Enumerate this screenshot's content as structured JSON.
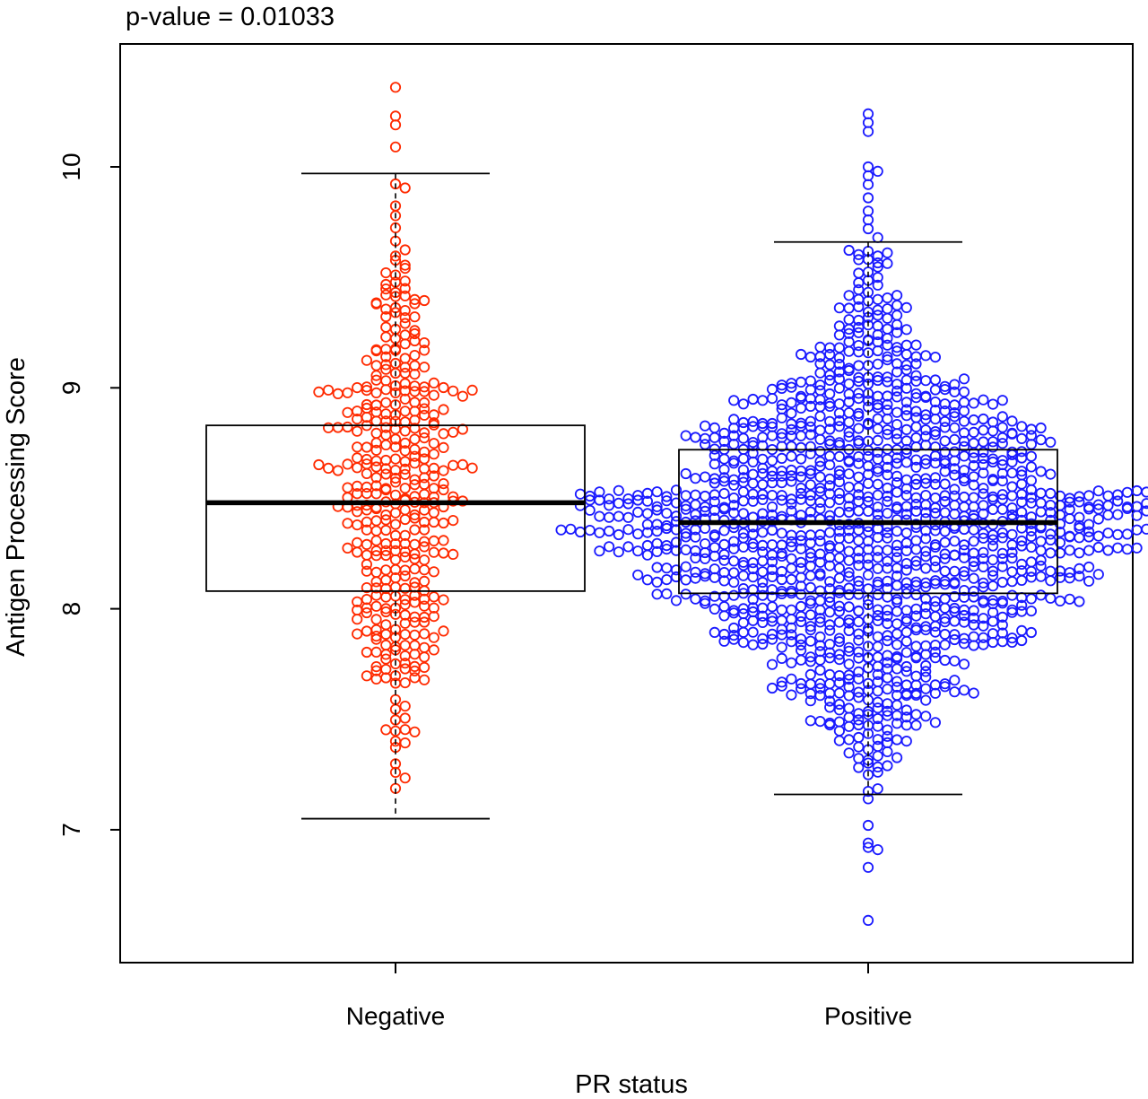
{
  "chart_data": {
    "type": "boxplot",
    "annotation": "p-value = 0.01033",
    "xlabel": "PR status",
    "ylabel": "Antigen Processing Score",
    "categories": [
      "Negative",
      "Positive"
    ],
    "y_ticks": [
      7,
      8,
      9,
      10
    ],
    "ylim": [
      6.4,
      10.5
    ],
    "grid": false,
    "legend": "none",
    "colors": {
      "Negative": "#ff2a00",
      "Positive": "#1a1aff",
      "box": "#000000"
    },
    "series": [
      {
        "category": "Negative",
        "box": {
          "min": 7.05,
          "q1": 8.08,
          "median": 8.48,
          "q3": 8.83,
          "max": 9.97
        },
        "outliers": [
          10.36,
          10.23,
          10.19,
          10.09
        ],
        "points_estimated_count": 390
      },
      {
        "category": "Positive",
        "box": {
          "min": 7.16,
          "q1": 8.07,
          "median": 8.39,
          "q3": 8.72,
          "max": 9.66
        },
        "outliers": [
          10.24,
          10.2,
          10.16,
          10.0,
          9.98,
          9.96,
          9.92,
          9.86,
          9.8,
          9.76,
          9.72,
          9.68,
          7.14,
          7.02,
          6.94,
          6.92,
          6.91,
          6.83,
          6.59
        ],
        "points_estimated_count": 1400
      }
    ]
  }
}
